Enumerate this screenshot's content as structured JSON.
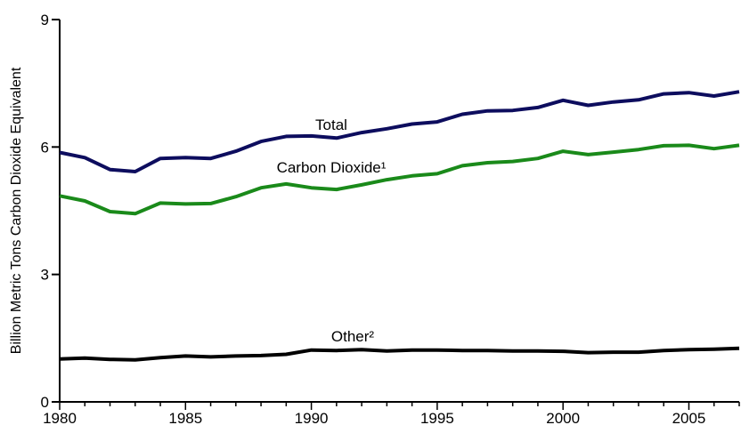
{
  "chart_data": {
    "type": "line",
    "ylabel": "Billion Metric Tons Carbon  Dioxide Equivalent",
    "xlabel": "",
    "xlim": [
      1980,
      2007
    ],
    "ylim": [
      0,
      9
    ],
    "x_ticks": [
      1980,
      1985,
      1990,
      1995,
      2000,
      2005
    ],
    "y_ticks": [
      0,
      3,
      6,
      9
    ],
    "grid": false,
    "x": [
      1980,
      1981,
      1982,
      1983,
      1984,
      1985,
      1986,
      1987,
      1988,
      1989,
      1990,
      1991,
      1992,
      1993,
      1994,
      1995,
      1996,
      1997,
      1998,
      1999,
      2000,
      2001,
      2002,
      2003,
      2004,
      2005,
      2006,
      2007
    ],
    "series": [
      {
        "name": "Total",
        "color": "#0d0d5e",
        "values": [
          5.87,
          5.75,
          5.47,
          5.42,
          5.73,
          5.75,
          5.73,
          5.9,
          6.13,
          6.25,
          6.26,
          6.21,
          6.34,
          6.43,
          6.54,
          6.59,
          6.77,
          6.85,
          6.86,
          6.93,
          7.1,
          6.98,
          7.06,
          7.11,
          7.25,
          7.28,
          7.2,
          7.3
        ]
      },
      {
        "name": "Carbon Dioxide¹",
        "color": "#1a8a1a",
        "values": [
          4.85,
          4.73,
          4.48,
          4.43,
          4.68,
          4.66,
          4.67,
          4.83,
          5.04,
          5.13,
          5.04,
          5.0,
          5.11,
          5.23,
          5.32,
          5.37,
          5.56,
          5.63,
          5.66,
          5.73,
          5.9,
          5.82,
          5.88,
          5.94,
          6.03,
          6.04,
          5.96,
          6.04
        ]
      },
      {
        "name": "Other²",
        "color": "#000000",
        "values": [
          1.01,
          1.03,
          1.0,
          0.99,
          1.04,
          1.08,
          1.06,
          1.08,
          1.09,
          1.12,
          1.22,
          1.21,
          1.23,
          1.2,
          1.22,
          1.22,
          1.21,
          1.21,
          1.2,
          1.2,
          1.19,
          1.16,
          1.17,
          1.17,
          1.21,
          1.23,
          1.24,
          1.26
        ]
      }
    ]
  }
}
